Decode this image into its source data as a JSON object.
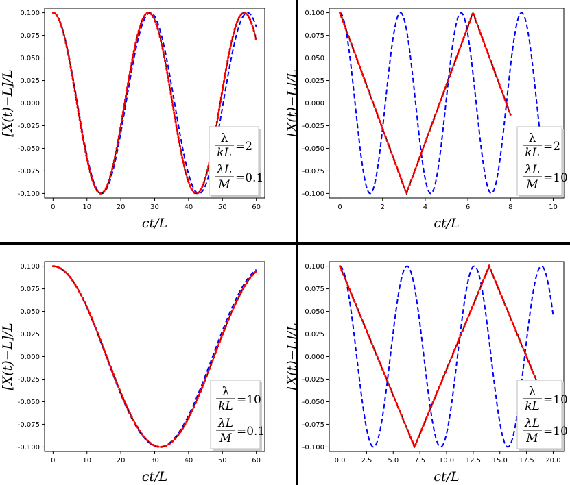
{
  "axis_labels": {
    "x": "ct/L",
    "y": "[X(t)−L]/L"
  },
  "legend_text": {
    "lambda_symbol": "λ",
    "kL": "kL",
    "lambdaL": "λL",
    "M": "M",
    "equals": "="
  },
  "colors": {
    "analytic": "#0000ff",
    "numeric": "#ff0000",
    "reference": "#000000",
    "divider": "#000000"
  },
  "chart_data": [
    {
      "type": "line",
      "panel": "top-left",
      "xlim": [
        -2.5,
        62.5
      ],
      "ylim": [
        -0.105,
        0.105
      ],
      "xticks": [
        "0",
        "10",
        "20",
        "30",
        "40",
        "50",
        "60"
      ],
      "xtick_values": [
        0,
        10,
        20,
        30,
        40,
        50,
        60
      ],
      "yticks": [
        "0.100",
        "0.075",
        "0.050",
        "0.025",
        "0.000",
        "-0.025",
        "-0.050",
        "-0.075",
        "-0.100"
      ],
      "ytick_values": [
        0.1,
        0.075,
        0.05,
        0.025,
        0,
        -0.025,
        -0.05,
        -0.075,
        -0.1
      ],
      "legend": {
        "lambda_over_kL": "2",
        "lambdaL_over_M": "0.1"
      },
      "series": [
        {
          "style": "blue-dashed",
          "kind": "cosine",
          "amp": 0.1,
          "period": 28.7,
          "x_end": 60
        },
        {
          "style": "black-solid",
          "kind": "cosine",
          "amp": 0.1,
          "period": 28.2,
          "x_end": 60
        },
        {
          "style": "red-dotted",
          "kind": "cosine",
          "amp": 0.1,
          "period": 28.2,
          "x_end": 60
        }
      ]
    },
    {
      "type": "line",
      "panel": "top-right",
      "xlim": [
        -0.5,
        10.5
      ],
      "ylim": [
        -0.105,
        0.105
      ],
      "xticks": [
        "0",
        "2",
        "4",
        "6",
        "8",
        "10"
      ],
      "xtick_values": [
        0,
        2,
        4,
        6,
        8,
        10
      ],
      "yticks": [
        "0.100",
        "0.075",
        "0.050",
        "0.025",
        "0.000",
        "-0.025",
        "-0.050",
        "-0.075",
        "-0.100"
      ],
      "ytick_values": [
        0.1,
        0.075,
        0.05,
        0.025,
        0,
        -0.025,
        -0.05,
        -0.075,
        -0.1
      ],
      "legend": {
        "lambda_over_kL": "2",
        "lambdaL_over_M": "10"
      },
      "series": [
        {
          "style": "blue-dashed",
          "kind": "cosine",
          "amp": 0.1,
          "period": 2.84,
          "x_end": 9.4
        },
        {
          "style": "black-solid",
          "kind": "triangle",
          "amp": 0.1,
          "period": 6.24,
          "x_end": 8.0
        },
        {
          "style": "red-dotted",
          "kind": "triangle",
          "amp": 0.1,
          "period": 6.24,
          "x_end": 8.0
        }
      ]
    },
    {
      "type": "line",
      "panel": "bottom-left",
      "xlim": [
        -2.5,
        62.5
      ],
      "ylim": [
        -0.105,
        0.105
      ],
      "xticks": [
        "0",
        "10",
        "20",
        "30",
        "40",
        "50",
        "60"
      ],
      "xtick_values": [
        0,
        10,
        20,
        30,
        40,
        50,
        60
      ],
      "yticks": [
        "0.100",
        "0.075",
        "0.050",
        "0.025",
        "0.000",
        "-0.025",
        "-0.050",
        "-0.075",
        "-0.100"
      ],
      "ytick_values": [
        0.1,
        0.075,
        0.05,
        0.025,
        0,
        -0.025,
        -0.05,
        -0.075,
        -0.1
      ],
      "legend": {
        "lambda_over_kL": "10",
        "lambdaL_over_M": "0.1"
      },
      "series": [
        {
          "style": "blue-dashed",
          "kind": "cosine",
          "amp": 0.1,
          "period": 62.8,
          "x_end": 60
        },
        {
          "style": "black-solid",
          "kind": "cosine",
          "amp": 0.1,
          "period": 63.4,
          "x_end": 60
        },
        {
          "style": "red-dotted",
          "kind": "cosine",
          "amp": 0.1,
          "period": 63.4,
          "x_end": 60
        }
      ]
    },
    {
      "type": "line",
      "panel": "bottom-right",
      "xlim": [
        -1.0,
        21.0
      ],
      "ylim": [
        -0.105,
        0.105
      ],
      "xticks": [
        "0.0",
        "2.5",
        "5.0",
        "7.5",
        "10.0",
        "12.5",
        "15.0",
        "17.5",
        "20.0"
      ],
      "xtick_values": [
        0,
        2.5,
        5,
        7.5,
        10,
        12.5,
        15,
        17.5,
        20
      ],
      "yticks": [
        "0.100",
        "0.075",
        "0.050",
        "0.025",
        "0.000",
        "-0.025",
        "-0.050",
        "-0.075",
        "-0.100"
      ],
      "ytick_values": [
        0.1,
        0.075,
        0.05,
        0.025,
        0,
        -0.025,
        -0.05,
        -0.075,
        -0.1
      ],
      "legend": {
        "lambda_over_kL": "10",
        "lambdaL_over_M": "10"
      },
      "series": [
        {
          "style": "blue-dashed",
          "kind": "cosine",
          "amp": 0.1,
          "period": 6.3,
          "x_end": 20
        },
        {
          "style": "black-solid",
          "kind": "triangle",
          "amp": 0.1,
          "period": 14.0,
          "x_end": 18.5
        },
        {
          "style": "red-dotted",
          "kind": "triangle",
          "amp": 0.1,
          "period": 14.0,
          "x_end": 18.5
        }
      ]
    }
  ]
}
